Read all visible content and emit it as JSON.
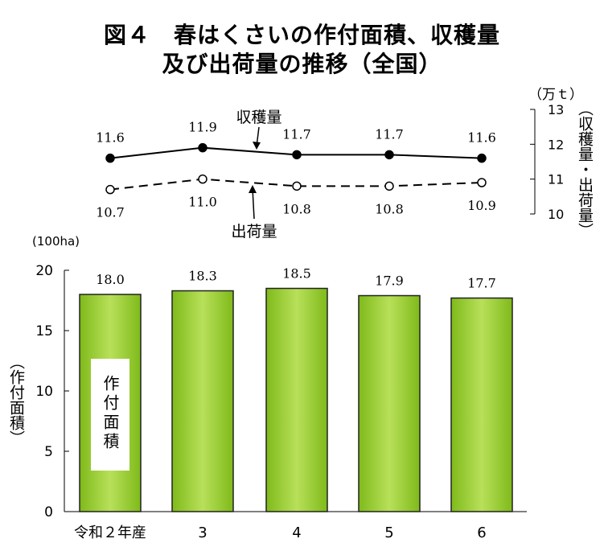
{
  "title_lines": [
    "図４　春はくさいの作付面積、収穫量",
    "及び出荷量の推移（全国）"
  ],
  "chart_data": [
    {
      "type": "line",
      "categories": [
        "令和２年産",
        "3",
        "4",
        "5",
        "6"
      ],
      "series": [
        {
          "name": "収穫量",
          "values": [
            11.6,
            11.9,
            11.7,
            11.7,
            11.6
          ],
          "value_labels": [
            "11.6",
            "11.9",
            "11.7",
            "11.7",
            "11.6"
          ],
          "marker": "filled-circle",
          "line_style": "solid"
        },
        {
          "name": "出荷量",
          "values": [
            10.7,
            11.0,
            10.8,
            10.8,
            10.9
          ],
          "value_labels": [
            "10.7",
            "11.0",
            "10.8",
            "10.8",
            "10.9"
          ],
          "marker": "open-circle",
          "line_style": "dashed"
        }
      ],
      "y_axis": {
        "position": "right",
        "unit": "（万ｔ）",
        "label": "（収穫量・出荷量）",
        "ylim": [
          10,
          13
        ],
        "ticks": [
          10,
          11,
          12,
          13
        ]
      }
    },
    {
      "type": "bar",
      "categories": [
        "令和２年産",
        "3",
        "4",
        "5",
        "6"
      ],
      "series": [
        {
          "name": "作付面積",
          "values": [
            18.0,
            18.3,
            18.5,
            17.9,
            17.7
          ],
          "value_labels": [
            "18.0",
            "18.3",
            "18.5",
            "17.9",
            "17.7"
          ]
        }
      ],
      "y_axis": {
        "position": "left",
        "unit": "(100ha)",
        "label": "（作付面積）",
        "ylim": [
          0,
          20
        ],
        "ticks": [
          0,
          5,
          10,
          15,
          20
        ]
      },
      "legend_box_label": "作付面積",
      "grid": false
    }
  ],
  "colors": {
    "bar_fill_center": "#b8e05a",
    "bar_fill_edge": "#7fba1a",
    "bar_stroke": "#222222",
    "line": "#000000"
  }
}
